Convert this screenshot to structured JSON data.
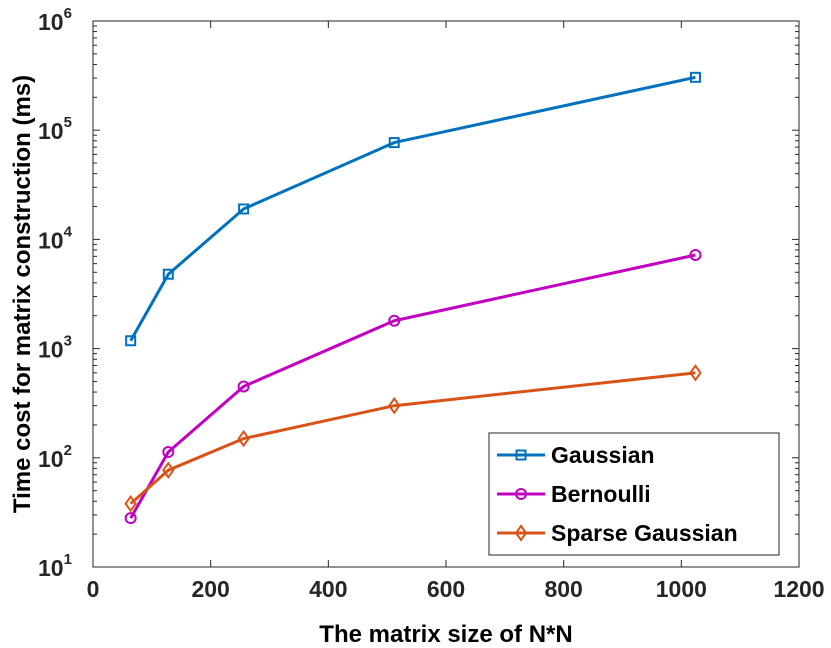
{
  "chart_data": {
    "type": "line",
    "title": "",
    "xlabel": "The matrix size of N*N",
    "ylabel": "Time cost for matrix construction (ms)",
    "xlim": [
      0,
      1200
    ],
    "ylim": [
      10,
      1000000
    ],
    "yscale": "log",
    "grid": false,
    "legend_position": "bottom-right",
    "x_ticks": [
      "0",
      "200",
      "400",
      "600",
      "800",
      "1000",
      "1200"
    ],
    "y_ticks": [
      {
        "base": "10",
        "exp": "1",
        "value": 10
      },
      {
        "base": "10",
        "exp": "2",
        "value": 100
      },
      {
        "base": "10",
        "exp": "3",
        "value": 1000
      },
      {
        "base": "10",
        "exp": "4",
        "value": 10000
      },
      {
        "base": "10",
        "exp": "5",
        "value": 100000
      },
      {
        "base": "10",
        "exp": "6",
        "value": 1000000
      }
    ],
    "x": [
      64,
      128,
      256,
      512,
      1024
    ],
    "series": [
      {
        "name": "Gaussian",
        "color": "#0072BD",
        "marker": "square",
        "values": [
          1180,
          4800,
          19000,
          77000,
          305000
        ]
      },
      {
        "name": "Bernoulli",
        "color": "#C200C2",
        "marker": "circle",
        "values": [
          28,
          113,
          450,
          1800,
          7200
        ]
      },
      {
        "name": "Sparse Gaussian",
        "color": "#D95319",
        "marker": "diamond",
        "values": [
          38,
          77,
          150,
          300,
          600
        ]
      }
    ]
  }
}
